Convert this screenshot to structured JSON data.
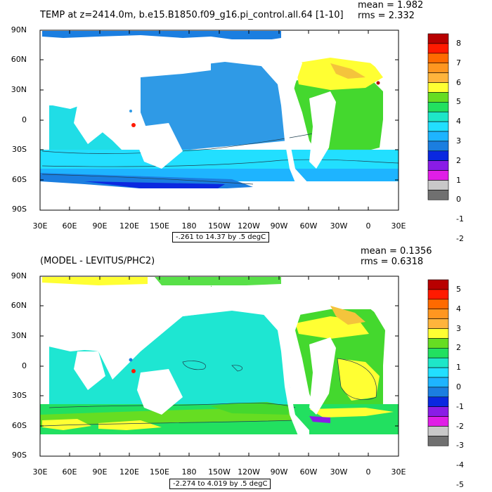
{
  "colors": {
    "ocean": {
      "panel1": "#2f9ae6",
      "panel2": "#1fe6d8"
    },
    "arctic": {
      "panel1": "#1b7ee0",
      "panel2": "#58e048"
    }
  },
  "panels": [
    {
      "title": "TEMP at z=2414.0m, b.e15.B1850.f09_g16.pi_control.all.64 [1-10]",
      "mean": "mean = 1.982",
      "rms": "rms = 2.332",
      "range": "-.261 to 14.37 by .5 degC",
      "lat_labels": [
        "90N",
        "60N",
        "30N",
        "0",
        "30S",
        "60S",
        "90S"
      ],
      "lon_labels": [
        "30E",
        "60E",
        "90E",
        "120E",
        "150E",
        "180",
        "150W",
        "120W",
        "90W",
        "60W",
        "30W",
        "0",
        "30E"
      ],
      "colorbar": {
        "labels": [
          "8",
          "7",
          "6",
          "5",
          "4",
          "3",
          "2",
          "1",
          "0",
          "-1",
          "-2"
        ],
        "colors": [
          "#b80000",
          "#ff1a00",
          "#ff6a00",
          "#ff9620",
          "#ffb43c",
          "#ffff33",
          "#66dd22",
          "#22e060",
          "#1ee6c8",
          "#22dfff",
          "#1eb4ff",
          "#1b7ee0",
          "#0a28e0",
          "#8a1ce6",
          "#e01ee6",
          "#c8c8c8",
          "#707070"
        ]
      }
    },
    {
      "title": "(MODEL - LEVITUS/PHC2)",
      "mean": "mean = 0.1356",
      "rms": "rms = 0.6318",
      "range": "-2.274 to 4.019 by .5 degC",
      "lat_labels": [
        "90N",
        "60N",
        "30N",
        "0",
        "30S",
        "60S",
        "90S"
      ],
      "lon_labels": [
        "30E",
        "60E",
        "90E",
        "120E",
        "150E",
        "180",
        "150W",
        "120W",
        "90W",
        "60W",
        "30W",
        "0",
        "30E"
      ],
      "colorbar": {
        "labels": [
          "5",
          "4",
          "3",
          "2",
          "1",
          "0",
          "-1",
          "-2",
          "-3",
          "-4",
          "-5"
        ],
        "colors": [
          "#b80000",
          "#ff1a00",
          "#ff6a00",
          "#ff9620",
          "#ffb43c",
          "#ffff33",
          "#66dd22",
          "#22e060",
          "#1ee6c8",
          "#22dfff",
          "#1eb4ff",
          "#1b7ee0",
          "#0a28e0",
          "#8a1ce6",
          "#e01ee6",
          "#c8c8c8",
          "#707070"
        ]
      }
    }
  ]
}
